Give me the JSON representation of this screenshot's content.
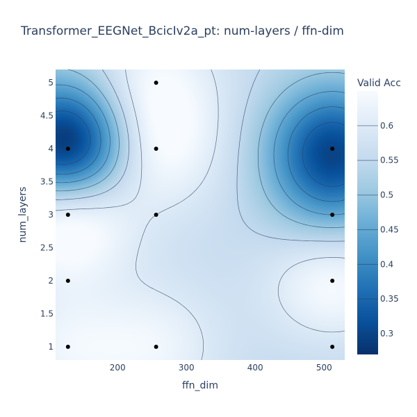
{
  "chart_data": {
    "type": "contour",
    "title": "Transformer_EEGNet_BcicIv2a_pt: num-layers / ffn-dim",
    "xlabel": "ffn_dim",
    "ylabel": "num_layers",
    "xlim": [
      110,
      530
    ],
    "ylim": [
      0.8,
      5.2
    ],
    "x_ticks": [
      200,
      300,
      400,
      500
    ],
    "y_ticks": [
      1,
      1.5,
      2,
      2.5,
      3,
      3.5,
      4,
      4.5,
      5
    ],
    "colorbar": {
      "title": "Valid Acc",
      "range": [
        0.27,
        0.65
      ],
      "ticks": [
        0.3,
        0.35,
        0.4,
        0.45,
        0.5,
        0.55,
        0.6
      ],
      "colorscale": [
        "#08306b",
        "#08519c",
        "#2171b5",
        "#4292c6",
        "#6baed6",
        "#9ecae1",
        "#c6dbef",
        "#deebf7",
        "#f7fbff"
      ]
    },
    "trials": [
      {
        "x": 128,
        "y": 1,
        "value": 0.64
      },
      {
        "x": 256,
        "y": 1,
        "value": 0.64
      },
      {
        "x": 512,
        "y": 1,
        "value": 0.58
      },
      {
        "x": 128,
        "y": 2,
        "value": 0.63
      },
      {
        "x": 512,
        "y": 2,
        "value": 0.64
      },
      {
        "x": 128,
        "y": 3,
        "value": 0.62
      },
      {
        "x": 256,
        "y": 3,
        "value": 0.6
      },
      {
        "x": 512,
        "y": 3,
        "value": 0.45
      },
      {
        "x": 128,
        "y": 4,
        "value": 0.3
      },
      {
        "x": 256,
        "y": 4,
        "value": 0.64
      },
      {
        "x": 512,
        "y": 4,
        "value": 0.3
      },
      {
        "x": 256,
        "y": 5,
        "value": 0.65
      }
    ]
  }
}
